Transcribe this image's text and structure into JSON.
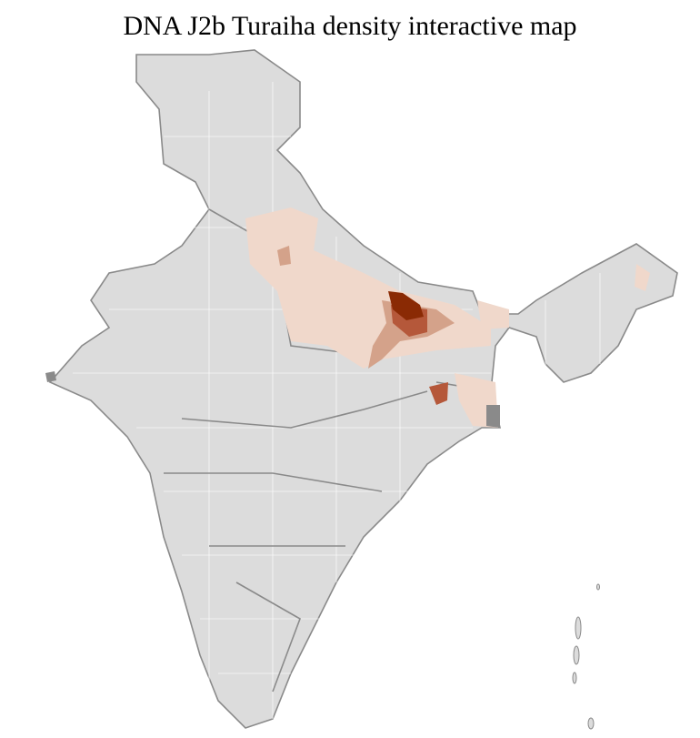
{
  "title": "DNA J2b Turaiha density interactive map",
  "colors": {
    "base": "#dcdcdc",
    "district_border": "#ffffff",
    "state_border": "#8a8a8a",
    "density_low": "#f0d8cb",
    "density_mid": "#d4a28a",
    "density_high": "#b5583a",
    "density_max": "#8a2a04"
  }
}
